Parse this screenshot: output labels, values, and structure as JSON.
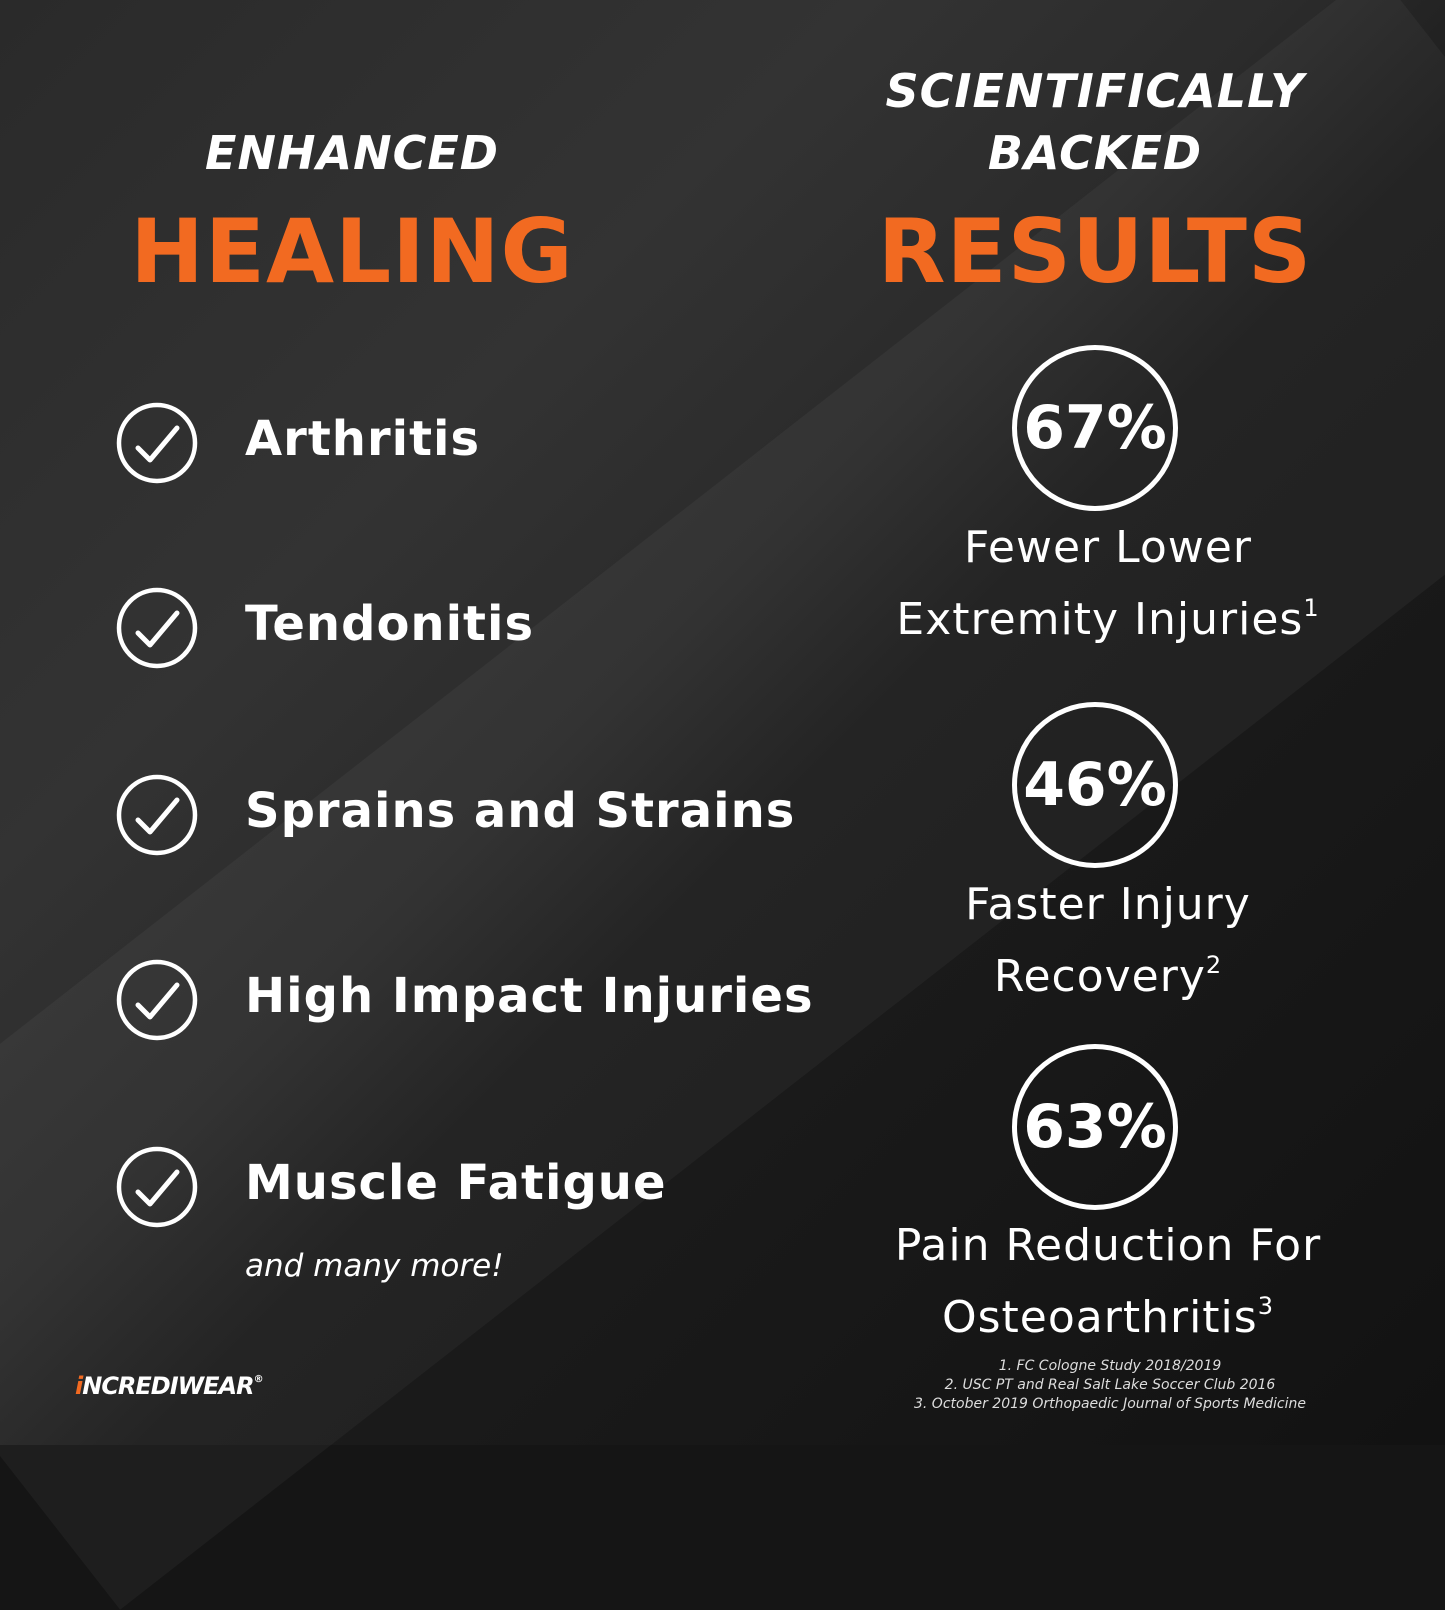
{
  "left": {
    "heading_small": "ENHANCED",
    "heading_big": "HEALING",
    "items": [
      "Arthritis",
      "Tendonitis",
      "Sprains and Strains",
      "High Impact Injuries",
      "Muscle Fatigue"
    ],
    "more": "and many more!"
  },
  "right": {
    "heading_small_1": "SCIENTIFICALLY",
    "heading_small_2": "BACKED",
    "heading_big": "RESULTS",
    "stats": [
      {
        "value": "67%",
        "line1": "Fewer Lower",
        "line2": "Extremity Injuries",
        "ref": "1"
      },
      {
        "value": "46%",
        "line1": "Faster Injury",
        "line2": "Recovery",
        "ref": "2"
      },
      {
        "value": "63%",
        "line1": "Pain Reduction For",
        "line2": "Osteoarthritis",
        "ref": "3"
      }
    ]
  },
  "footnotes": [
    "1. FC Cologne Study 2018/2019",
    "2. USC PT and Real Salt Lake Soccer Club 2016",
    "3. October 2019 Orthopaedic Journal of Sports Medicine"
  ],
  "logo": {
    "text": "INCREDIWEAR",
    "mark": "®"
  },
  "colors": {
    "accent": "#f26a21",
    "background": "#1c1c1c"
  },
  "icons": {
    "check": "check-circle-icon"
  }
}
